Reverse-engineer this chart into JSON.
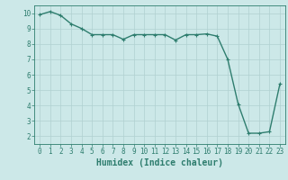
{
  "x": [
    0,
    1,
    2,
    3,
    4,
    5,
    6,
    7,
    8,
    9,
    10,
    11,
    12,
    13,
    14,
    15,
    16,
    17,
    18,
    19,
    20,
    21,
    22,
    23
  ],
  "y": [
    9.9,
    10.1,
    9.85,
    9.3,
    9.0,
    8.6,
    8.6,
    8.6,
    8.3,
    8.6,
    8.6,
    8.6,
    8.6,
    8.25,
    8.6,
    8.6,
    8.65,
    8.5,
    7.0,
    4.1,
    2.2,
    2.2,
    2.3,
    5.4
  ],
  "line_color": "#2e7d6e",
  "marker_color": "#2e7d6e",
  "bg_color": "#cce8e8",
  "grid_color": "#b0d0d0",
  "xlabel": "Humidex (Indice chaleur)",
  "xlim": [
    -0.5,
    23.5
  ],
  "ylim": [
    1.5,
    10.5
  ],
  "yticks": [
    2,
    3,
    4,
    5,
    6,
    7,
    8,
    9,
    10
  ],
  "xticks": [
    0,
    1,
    2,
    3,
    4,
    5,
    6,
    7,
    8,
    9,
    10,
    11,
    12,
    13,
    14,
    15,
    16,
    17,
    18,
    19,
    20,
    21,
    22,
    23
  ],
  "axis_color": "#2e7d6e",
  "xlabel_fontsize": 7,
  "tick_fontsize": 5.5,
  "linewidth": 1.0,
  "markersize": 2.5,
  "marker": "+"
}
